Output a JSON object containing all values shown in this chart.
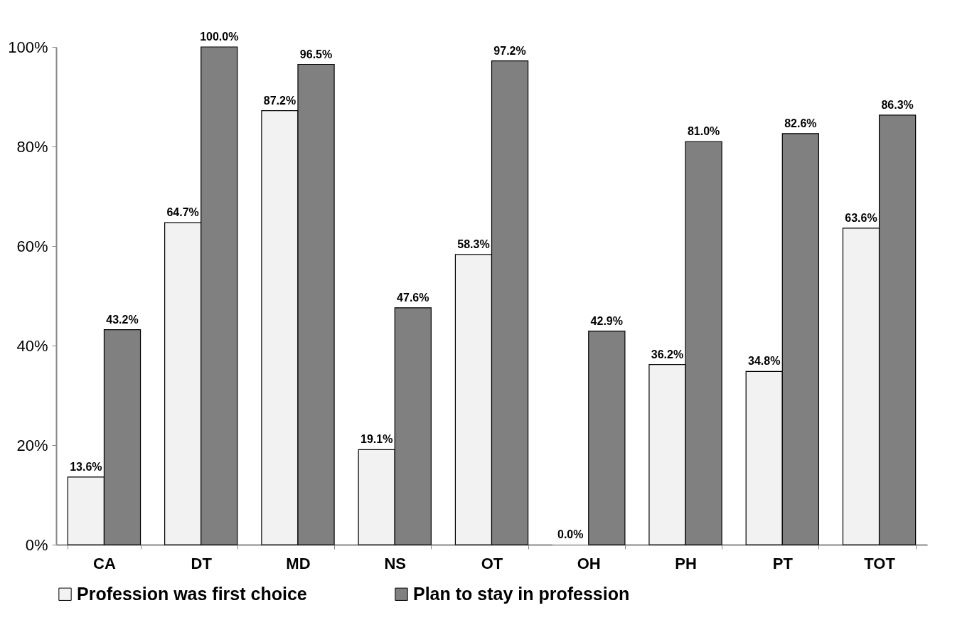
{
  "chart_data": {
    "type": "bar",
    "categories": [
      "CA",
      "DT",
      "MD",
      "NS",
      "OT",
      "OH",
      "PH",
      "PT",
      "TOT"
    ],
    "series": [
      {
        "name": "Profession was first choice",
        "color": "#f2f2f2",
        "values": [
          13.6,
          64.7,
          87.2,
          19.1,
          58.3,
          0.0,
          36.2,
          34.8,
          63.6
        ],
        "value_labels": [
          "13.6%",
          "64.7%",
          "87.2%",
          "19.1%",
          "58.3%",
          "0.0%",
          "36.2%",
          "34.8%",
          "63.6%"
        ]
      },
      {
        "name": "Plan to stay in profession",
        "color": "#808080",
        "values": [
          43.2,
          100.0,
          96.5,
          47.6,
          97.2,
          42.9,
          81.0,
          82.6,
          86.3
        ],
        "value_labels": [
          "43.2%",
          "100.0%",
          "96.5%",
          "47.6%",
          "97.2%",
          "42.9%",
          "81.0%",
          "82.6%",
          "86.3%"
        ]
      }
    ],
    "ylim": [
      0,
      100
    ],
    "yticks": [
      {
        "value": 0,
        "label": "0%"
      },
      {
        "value": 20,
        "label": "20%"
      },
      {
        "value": 40,
        "label": "40%"
      },
      {
        "value": 60,
        "label": "60%"
      },
      {
        "value": 80,
        "label": "80%"
      },
      {
        "value": 100,
        "label": "100%"
      }
    ],
    "grid": false,
    "legend": "bottom"
  }
}
